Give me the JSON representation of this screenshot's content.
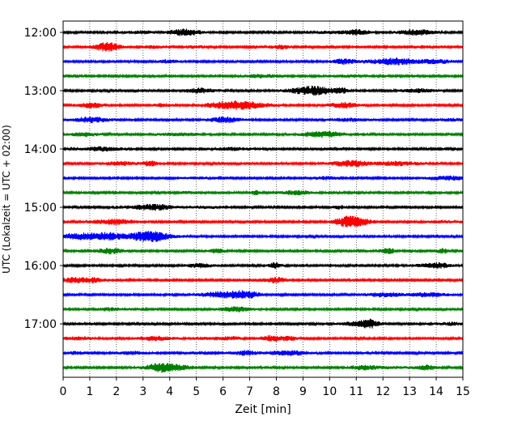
{
  "chart_data": {
    "type": "line",
    "title": "",
    "xlabel": "Zeit  [min]",
    "ylabel": "UTC (Lokalzeit = UTC + 02:00)",
    "xlim": [
      0,
      15
    ],
    "x_ticks": [
      0,
      1,
      2,
      3,
      4,
      5,
      6,
      7,
      8,
      9,
      10,
      11,
      12,
      13,
      14,
      15
    ],
    "x_tick_labels": [
      "0",
      "1",
      "2",
      "3",
      "4",
      "5",
      "6",
      "7",
      "8",
      "9",
      "10",
      "11",
      "12",
      "13",
      "14",
      "15"
    ],
    "vertical_grid": true,
    "y_tick_labels": [
      "12:00",
      "13:00",
      "14:00",
      "15:00",
      "16:00",
      "17:00"
    ],
    "trace_colors": [
      "#000000",
      "#ff0000",
      "#0000ff",
      "#008000"
    ],
    "traces": [
      {
        "start": "12:00",
        "color": "#000000"
      },
      {
        "start": "12:15",
        "color": "#ff0000"
      },
      {
        "start": "12:30",
        "color": "#0000ff"
      },
      {
        "start": "12:45",
        "color": "#008000"
      },
      {
        "start": "13:00",
        "color": "#000000"
      },
      {
        "start": "13:15",
        "color": "#ff0000"
      },
      {
        "start": "13:30",
        "color": "#0000ff"
      },
      {
        "start": "13:45",
        "color": "#008000"
      },
      {
        "start": "14:00",
        "color": "#000000"
      },
      {
        "start": "14:15",
        "color": "#ff0000"
      },
      {
        "start": "14:30",
        "color": "#0000ff"
      },
      {
        "start": "14:45",
        "color": "#008000"
      },
      {
        "start": "15:00",
        "color": "#000000"
      },
      {
        "start": "15:15",
        "color": "#ff0000"
      },
      {
        "start": "15:30",
        "color": "#0000ff"
      },
      {
        "start": "15:45",
        "color": "#008000"
      },
      {
        "start": "16:00",
        "color": "#000000"
      },
      {
        "start": "16:15",
        "color": "#ff0000"
      },
      {
        "start": "16:30",
        "color": "#0000ff"
      },
      {
        "start": "16:45",
        "color": "#008000"
      },
      {
        "start": "17:00",
        "color": "#000000"
      },
      {
        "start": "17:15",
        "color": "#ff0000"
      },
      {
        "start": "17:30",
        "color": "#0000ff"
      },
      {
        "start": "17:45",
        "color": "#008000"
      }
    ]
  }
}
